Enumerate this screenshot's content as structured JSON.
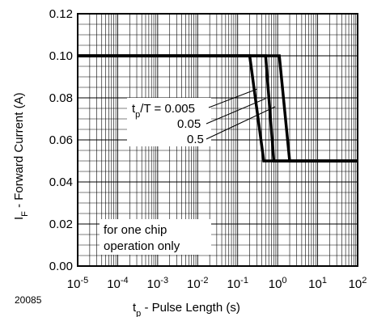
{
  "figure_id": "20085",
  "chart_data": {
    "type": "line",
    "title": "",
    "xlabel": {
      "main": "t",
      "sub": "p",
      "rest": " - Pulse Length (s)"
    },
    "ylabel": {
      "main": "I",
      "sub": "F",
      "rest": " - Forward Current (A)"
    },
    "x_scale": "log",
    "xlim": [
      1e-05,
      100
    ],
    "ylim": [
      0,
      0.12
    ],
    "x_ticks": [
      {
        "value": 1e-05,
        "base": "10",
        "exp": "-5"
      },
      {
        "value": 0.0001,
        "base": "10",
        "exp": "-4"
      },
      {
        "value": 0.001,
        "base": "10",
        "exp": "-3"
      },
      {
        "value": 0.01,
        "base": "10",
        "exp": "-2"
      },
      {
        "value": 0.1,
        "base": "10",
        "exp": "-1"
      },
      {
        "value": 1,
        "base": "10",
        "exp": "0"
      },
      {
        "value": 10,
        "base": "10",
        "exp": "1"
      },
      {
        "value": 100,
        "base": "10",
        "exp": "2"
      }
    ],
    "y_ticks": [
      {
        "value": 0.0,
        "label": "0.00"
      },
      {
        "value": 0.02,
        "label": "0.02"
      },
      {
        "value": 0.04,
        "label": "0.04"
      },
      {
        "value": 0.06,
        "label": "0.06"
      },
      {
        "value": 0.08,
        "label": "0.08"
      },
      {
        "value": 0.1,
        "label": "0.10"
      },
      {
        "value": 0.12,
        "label": "0.12"
      }
    ],
    "grid": true,
    "series": [
      {
        "name": "0.005",
        "label": {
          "lead": "t",
          "sub": "p",
          "tail": "/T = 0.005"
        },
        "points": [
          [
            1e-05,
            0.1
          ],
          [
            0.2,
            0.1
          ],
          [
            0.45,
            0.05
          ],
          [
            100,
            0.05
          ]
        ]
      },
      {
        "name": "0.05",
        "label": {
          "lead": "",
          "sub": "",
          "tail": "0.05"
        },
        "points": [
          [
            1e-05,
            0.1
          ],
          [
            0.5,
            0.1
          ],
          [
            0.8,
            0.05
          ],
          [
            100,
            0.05
          ]
        ]
      },
      {
        "name": "0.5",
        "label": {
          "lead": "",
          "sub": "",
          "tail": "0.5"
        },
        "points": [
          [
            1e-05,
            0.1
          ],
          [
            1.1,
            0.1
          ],
          [
            2.0,
            0.05
          ],
          [
            100,
            0.05
          ]
        ]
      }
    ],
    "annotation": [
      "for one chip",
      "operation only"
    ]
  }
}
